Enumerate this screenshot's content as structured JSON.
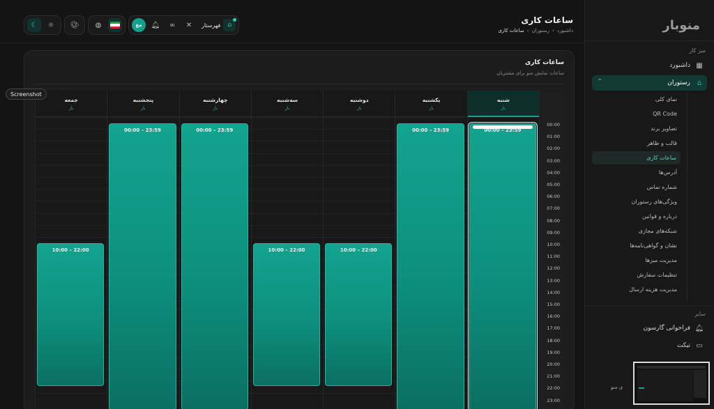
{
  "logo": "منوبار",
  "header": {
    "title": "ساعات کاری",
    "breadcrumb": [
      "داشبورد",
      "رستوران",
      "ساعات کاری"
    ],
    "branch_label": "فهرستار",
    "user_initials": "مغ"
  },
  "sidebar": {
    "section_main": "میز کار",
    "dashboard": "داشبورد",
    "restaurant": "رستوران",
    "sub_items": [
      "نمای کلی",
      "QR Code",
      "تصاویر برند",
      "قالب و ظاهر",
      "ساعات کاری",
      "آدرس‌ها",
      "شماره تماس",
      "ویژگی‌های رستوران",
      "درباره و قوانین",
      "شبکه‌های مجازی",
      "نشان و گواهی‌نامه‌ها",
      "مدیریت میزها",
      "تنظیمات سفارش",
      "مدیریت هزینه ارسال"
    ],
    "active_sub": "ساعات کاری",
    "section_other": "سایر",
    "recall": "فراخوانی گارسون",
    "ticket": "تیکت"
  },
  "card": {
    "title": "ساعات کاری",
    "subtitle": "ساعات نمایش منو برای مشتریان"
  },
  "schedule": {
    "times": [
      "00:00",
      "01:00",
      "02:00",
      "03:00",
      "04:00",
      "05:00",
      "06:00",
      "07:00",
      "08:00",
      "09:00",
      "10:00",
      "11:00",
      "12:00",
      "13:00",
      "14:00",
      "15:00",
      "16:00",
      "17:00",
      "18:00",
      "19:00",
      "20:00",
      "21:00",
      "22:00",
      "23:00"
    ],
    "status_label": "باز",
    "days": [
      {
        "name": "شنبه",
        "range": "00:00 – 23:59",
        "start": 0,
        "end": 24,
        "selected": true
      },
      {
        "name": "یکشنبه",
        "range": "00:00 – 23:59",
        "start": 0,
        "end": 24
      },
      {
        "name": "دوشنبه",
        "range": "10:00 – 22:00",
        "start": 10,
        "end": 22
      },
      {
        "name": "سه‌شنبه",
        "range": "10:00 – 22:00",
        "start": 10,
        "end": 22
      },
      {
        "name": "چهارشنبه",
        "range": "00:00 – 23:59",
        "start": 0,
        "end": 24
      },
      {
        "name": "پنجشنبه",
        "range": "00:00 – 23:59",
        "start": 0,
        "end": 24
      },
      {
        "name": "جمعه",
        "range": "10:00 – 22:00",
        "start": 10,
        "end": 22
      }
    ]
  },
  "tooltip": "Screenshot",
  "thumbnail_tail": "ی منو"
}
